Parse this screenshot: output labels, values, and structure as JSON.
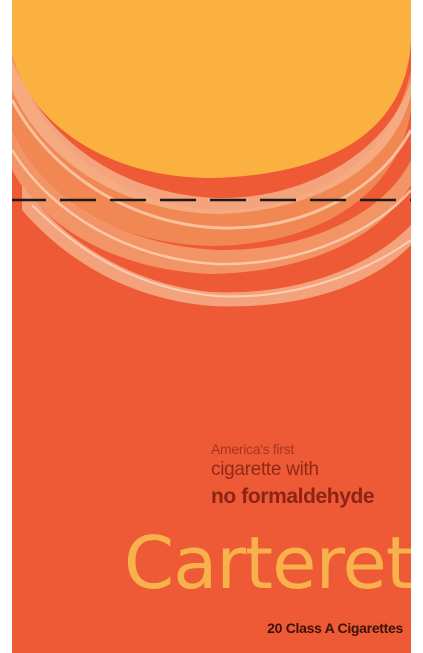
{
  "pack": {
    "tagline_line1": "America's first",
    "tagline_line2": "cigarette with",
    "tagline_line3": "no formaldehyde",
    "brand_name": "Carteret",
    "count_label": "20 Class A Cigarettes"
  },
  "colors": {
    "background": "#ee5a36",
    "sun": "#fbb13f",
    "brand_text": "#f7b24b",
    "tagline_text": "#8f2a17",
    "dashed_line": "#1a1a1a"
  }
}
